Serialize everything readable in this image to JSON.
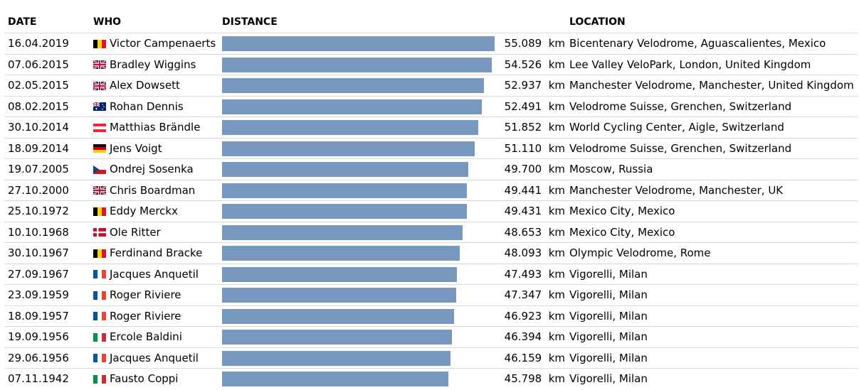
{
  "chart_data": {
    "type": "bar",
    "orientation": "horizontal",
    "headers": {
      "date": "DATE",
      "who": "WHO",
      "distance": "DISTANCE",
      "location": "LOCATION"
    },
    "unit": "km",
    "xlim": [
      0,
      55.089
    ],
    "bar_color": "#7898bf",
    "rows": [
      {
        "date": "16.04.2019",
        "flag": "belgium",
        "name": "Victor Campenaerts",
        "value": 55.089,
        "label": "55.089  km",
        "location": "Bicentenary Velodrome, Aguascalientes, Mexico"
      },
      {
        "date": "07.06.2015",
        "flag": "uk",
        "name": "Bradley Wiggins",
        "value": 54.526,
        "label": "54.526  km",
        "location": "Lee Valley VeloPark, London, United Kingdom"
      },
      {
        "date": "02.05.2015",
        "flag": "uk",
        "name": "Alex Dowsett",
        "value": 52.937,
        "label": "52.937  km",
        "location": "Manchester Velodrome, Manchester, United Kingdom"
      },
      {
        "date": "08.02.2015",
        "flag": "australia",
        "name": "Rohan Dennis",
        "value": 52.491,
        "label": "52.491  km",
        "location": "Velodrome Suisse, Grenchen, Switzerland"
      },
      {
        "date": "30.10.2014",
        "flag": "austria",
        "name": "Matthias Brändle",
        "value": 51.852,
        "label": "51.852  km",
        "location": "World Cycling Center, Aigle, Switzerland"
      },
      {
        "date": "18.09.2014",
        "flag": "germany",
        "name": "Jens Voigt",
        "value": 51.11,
        "label": "51.110  km",
        "location": "Velodrome Suisse, Grenchen, Switzerland"
      },
      {
        "date": "19.07.2005",
        "flag": "czech",
        "name": "Ondrej Sosenka",
        "value": 49.7,
        "label": "49.700  km",
        "location": "Moscow, Russia"
      },
      {
        "date": "27.10.2000",
        "flag": "uk",
        "name": "Chris Boardman",
        "value": 49.441,
        "label": "49.441  km",
        "location": "Manchester Velodrome, Manchester, UK"
      },
      {
        "date": "25.10.1972",
        "flag": "belgium",
        "name": "Eddy Merckx",
        "value": 49.431,
        "label": "49.431  km",
        "location": "Mexico City, Mexico"
      },
      {
        "date": "10.10.1968",
        "flag": "denmark",
        "name": "Ole Ritter",
        "value": 48.653,
        "label": "48.653  km",
        "location": "Mexico City, Mexico"
      },
      {
        "date": "30.10.1967",
        "flag": "belgium",
        "name": "Ferdinand Bracke",
        "value": 48.093,
        "label": "48.093  km",
        "location": "Olympic Velodrome, Rome"
      },
      {
        "date": "27.09.1967",
        "flag": "france",
        "name": "Jacques Anquetil",
        "value": 47.493,
        "label": "47.493  km",
        "location": "Vigorelli, Milan"
      },
      {
        "date": "23.09.1959",
        "flag": "france",
        "name": "Roger Riviere",
        "value": 47.347,
        "label": "47.347  km",
        "location": "Vigorelli, Milan"
      },
      {
        "date": "18.09.1957",
        "flag": "france",
        "name": "Roger Riviere",
        "value": 46.923,
        "label": "46.923  km",
        "location": "Vigorelli, Milan"
      },
      {
        "date": "19.09.1956",
        "flag": "italy",
        "name": "Ercole Baldini",
        "value": 46.394,
        "label": "46.394  km",
        "location": "Vigorelli, Milan"
      },
      {
        "date": "29.06.1956",
        "flag": "france",
        "name": "Jacques Anquetil",
        "value": 46.159,
        "label": "46.159  km",
        "location": "Vigorelli, Milan"
      },
      {
        "date": "07.11.1942",
        "flag": "italy",
        "name": "Fausto Coppi",
        "value": 45.798,
        "label": "45.798  km",
        "location": "Vigorelli, Milan"
      }
    ]
  }
}
